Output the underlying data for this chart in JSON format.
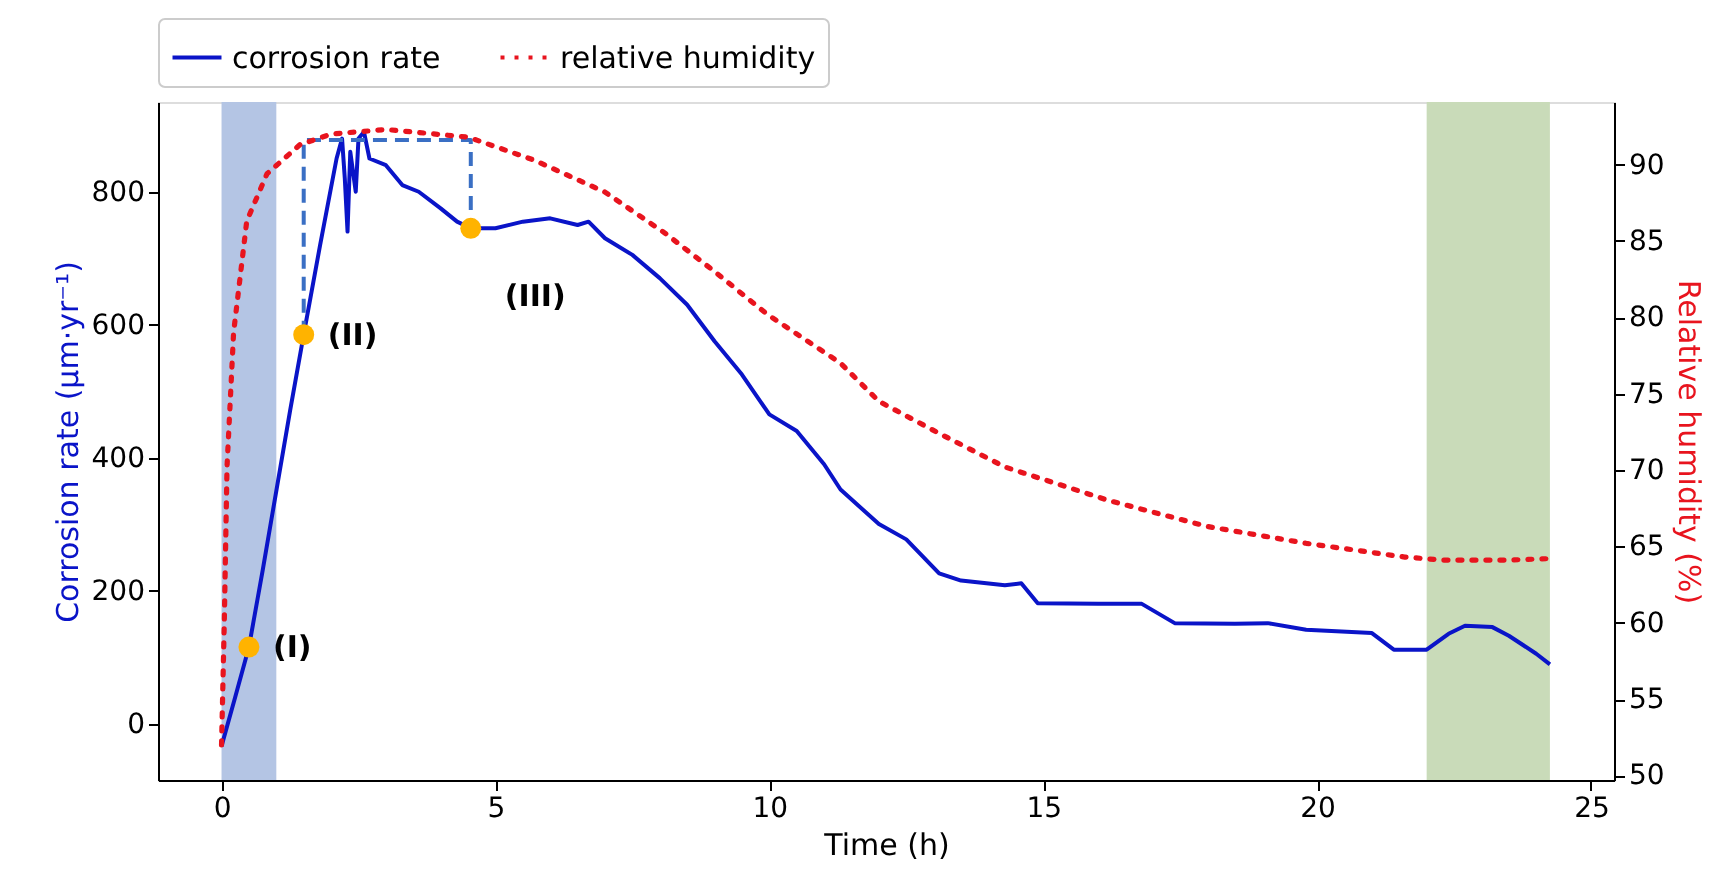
{
  "chart_data": {
    "type": "line",
    "xlabel": "Time (h)",
    "ylabel": "Corrosion rate (μm·yr⁻¹)",
    "y2label": "Relative humidity (%)",
    "xlim": [
      -1.16,
      25.42
    ],
    "xticks": [
      0,
      5,
      10,
      15,
      20,
      25
    ],
    "ylim": [
      -85,
      935
    ],
    "yticks": [
      0,
      200,
      400,
      600,
      800
    ],
    "y2lim": [
      49.7,
      94.1
    ],
    "y2ticks": [
      50,
      55,
      60,
      65,
      70,
      75,
      80,
      85,
      90
    ],
    "legend": "top",
    "grid": false,
    "series": [
      {
        "name": "corrosion rate",
        "line_style": "solid",
        "color": "#0a14c8",
        "x": [
          0,
          0.25,
          0.5,
          0.75,
          1.0,
          1.25,
          1.5,
          1.8,
          2.1,
          2.2,
          2.25,
          2.3,
          2.35,
          2.45,
          2.5,
          2.6,
          2.7,
          3.0,
          3.3,
          3.6,
          4.0,
          4.3,
          4.55,
          5.0,
          5.5,
          6.0,
          6.5,
          6.7,
          7.0,
          7.5,
          8.0,
          8.5,
          9.0,
          9.5,
          10.0,
          10.5,
          11.0,
          11.3,
          12.0,
          12.5,
          13.1,
          13.5,
          14.3,
          14.6,
          14.9,
          16.0,
          16.8,
          17.4,
          18.5,
          19.1,
          19.8,
          21.0,
          21.4,
          22.0,
          22.4,
          22.7,
          23.2,
          23.5,
          24.0,
          24.25
        ],
        "values": [
          -34,
          40,
          115,
          230,
          350,
          470,
          585,
          720,
          850,
          880,
          820,
          740,
          860,
          800,
          880,
          890,
          850,
          840,
          810,
          800,
          775,
          755,
          745,
          745,
          755,
          760,
          750,
          755,
          730,
          705,
          670,
          630,
          575,
          525,
          465,
          440,
          390,
          352,
          300,
          277,
          226,
          215,
          208,
          211,
          181,
          180,
          180,
          151,
          150,
          151,
          141,
          136,
          111,
          111,
          135,
          147,
          145,
          132,
          105,
          89
        ]
      },
      {
        "name": "relative humidity",
        "line_style": "dotted",
        "axis": "y2",
        "color": "#e8141e",
        "x": [
          0,
          0.05,
          0.1,
          0.22,
          0.46,
          0.83,
          1.43,
          2.0,
          3.0,
          4.5,
          5.7,
          7.0,
          8.1,
          9.0,
          9.96,
          11.3,
          12.0,
          13.1,
          14.3,
          16.2,
          18.0,
          19.8,
          21.6,
          22.3,
          23.5,
          24.25
        ],
        "values": [
          52,
          60,
          70.2,
          79,
          86.3,
          89.4,
          91.3,
          92,
          92.3,
          91.8,
          90.3,
          88.2,
          85.5,
          83,
          80.2,
          77,
          74.5,
          72.4,
          70.2,
          68.0,
          66.3,
          65.2,
          64.3,
          64.1,
          64.1,
          64.2
        ]
      },
      {
        "type": "line",
        "line_style": "dashed",
        "color": "#3a6fc4",
        "x": [
          1.5,
          1.5,
          4.55,
          4.55
        ],
        "values": [
          585,
          878,
          878,
          745
        ]
      },
      {
        "type": "scatter",
        "marker": "circle",
        "color": "#ffb300",
        "x": [
          0.5,
          1.5,
          4.55
        ],
        "values": [
          115,
          585,
          745
        ]
      }
    ],
    "bands": [
      {
        "axis": "x",
        "from": 0,
        "to": 1,
        "color": "#b4c5e4"
      },
      {
        "axis": "x",
        "from": 22,
        "to": 24.25,
        "color": "#c9dbb9"
      }
    ],
    "annotations": [
      {
        "text": "(I)",
        "x": 0.5,
        "y": 115
      },
      {
        "text": "(II)",
        "x": 1.5,
        "y": 585
      },
      "(III)"
    ]
  }
}
